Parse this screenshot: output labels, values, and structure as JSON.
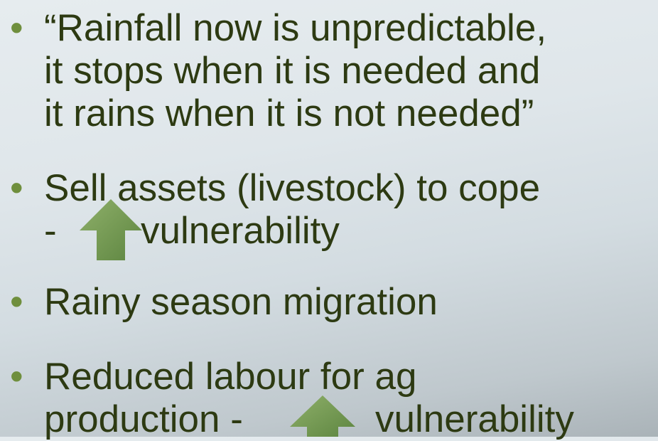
{
  "bullets": [
    {
      "lines": [
        "“Rainfall now is unpredictable,",
        "it stops when it is needed and",
        "it rains when it is not needed”"
      ]
    },
    {
      "lines": [
        "Sell assets (livestock) to cope",
        "-"
      ],
      "after_arrow": "vulnerability"
    },
    {
      "lines": [
        "Rainy season migration"
      ]
    },
    {
      "lines": [
        "Reduced labour for ag",
        "production -"
      ],
      "after_arrow": "vulnerability"
    }
  ]
}
